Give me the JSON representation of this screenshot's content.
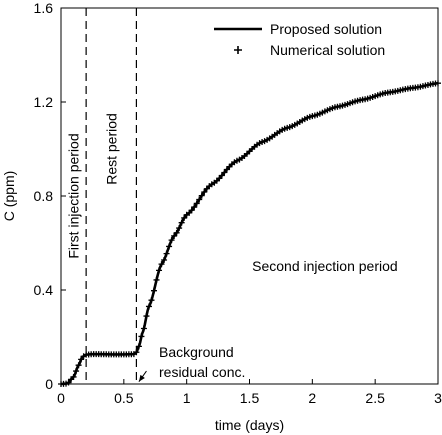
{
  "chart_data": {
    "type": "line",
    "xlabel": "time (days)",
    "ylabel": "C (ppm)",
    "xlim": [
      0,
      3
    ],
    "ylim": [
      0,
      1.6
    ],
    "xticks": [
      0,
      0.5,
      1,
      1.5,
      2,
      2.5,
      3
    ],
    "yticks": [
      0,
      0.4,
      0.8,
      1.2,
      1.6
    ],
    "xtick_labels": [
      "0",
      "0.5",
      "1",
      "1.5",
      "2",
      "2.5",
      "3"
    ],
    "ytick_labels": [
      "0",
      "0.4",
      "0.8",
      "1.2",
      "1.6"
    ],
    "grid": false,
    "legend_position": "top-right",
    "series": [
      {
        "name": "Proposed solution",
        "style": "solid-line",
        "color": "#000000",
        "x": [
          0,
          0.05,
          0.1,
          0.14,
          0.17,
          0.2,
          0.25,
          0.3,
          0.4,
          0.5,
          0.58,
          0.6,
          0.62,
          0.65,
          0.7,
          0.8,
          0.9,
          1.0,
          1.2,
          1.4,
          1.6,
          1.8,
          2.0,
          2.2,
          2.4,
          2.6,
          2.8,
          3.0
        ],
        "y": [
          0,
          0.002,
          0.03,
          0.08,
          0.115,
          0.125,
          0.127,
          0.127,
          0.126,
          0.126,
          0.127,
          0.135,
          0.16,
          0.22,
          0.33,
          0.51,
          0.63,
          0.72,
          0.85,
          0.95,
          1.03,
          1.09,
          1.14,
          1.18,
          1.21,
          1.24,
          1.26,
          1.28
        ]
      },
      {
        "name": "Numerical solution",
        "style": "plus-markers",
        "color": "#000000",
        "x": [
          0,
          0.05,
          0.1,
          0.14,
          0.17,
          0.2,
          0.25,
          0.3,
          0.4,
          0.5,
          0.58,
          0.6,
          0.62,
          0.65,
          0.7,
          0.8,
          0.9,
          1.0,
          1.2,
          1.4,
          1.6,
          1.8,
          2.0,
          2.2,
          2.4,
          2.6,
          2.8,
          3.0
        ],
        "y": [
          0,
          0.002,
          0.03,
          0.08,
          0.115,
          0.125,
          0.127,
          0.127,
          0.126,
          0.126,
          0.127,
          0.135,
          0.16,
          0.22,
          0.33,
          0.51,
          0.63,
          0.72,
          0.85,
          0.95,
          1.03,
          1.09,
          1.14,
          1.18,
          1.21,
          1.24,
          1.26,
          1.28
        ]
      }
    ],
    "vlines": [
      0.2,
      0.6
    ],
    "annotations": [
      {
        "text": "First injection period",
        "x": 0.1,
        "y": 0.8,
        "rotation": -90
      },
      {
        "text": "Rest period",
        "x": 0.4,
        "y": 1.0,
        "rotation": -90
      },
      {
        "text": "Second injection period",
        "x": 2.1,
        "y": 0.48,
        "rotation": 0
      },
      {
        "text": "Background",
        "x": 0.78,
        "y": 0.115,
        "rotation": 0
      },
      {
        "text": "residual conc.",
        "x": 0.78,
        "y": 0.03,
        "rotation": 0
      }
    ],
    "arrow": {
      "from": [
        0.68,
        0.055
      ],
      "to": [
        0.62,
        0.01
      ]
    }
  }
}
